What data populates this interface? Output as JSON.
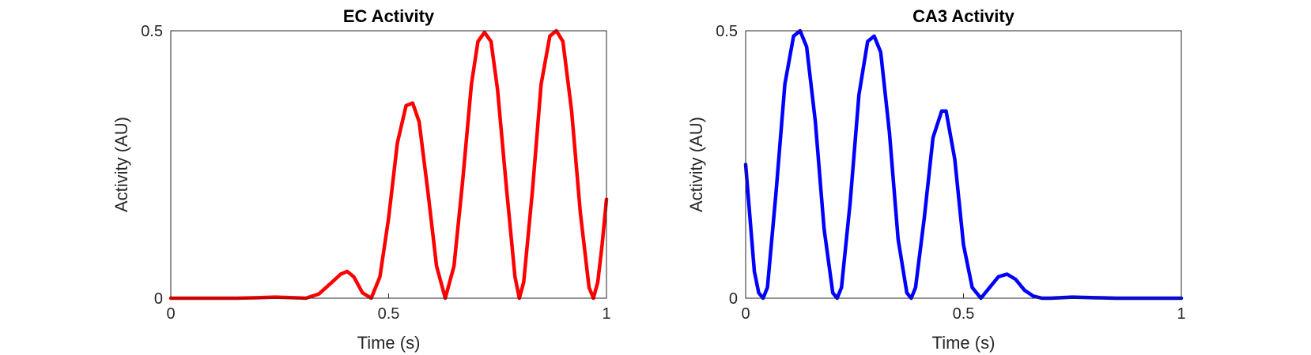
{
  "chart_data": [
    {
      "type": "line",
      "title": "EC Activity",
      "xlabel": "Time (s)",
      "ylabel": "Activity (AU)",
      "xlim": [
        0,
        1
      ],
      "ylim": [
        0,
        0.5
      ],
      "xticks": [
        0,
        0.5,
        1
      ],
      "xtick_labels": [
        "0",
        "0.5",
        "1"
      ],
      "yticks": [
        0,
        0.5
      ],
      "ytick_labels": [
        "0",
        "0.5"
      ],
      "grid": false,
      "color": "#ff0000",
      "series": [
        {
          "x": [
            0,
            0.05,
            0.1,
            0.15,
            0.2,
            0.24,
            0.28,
            0.31,
            0.34,
            0.37,
            0.39,
            0.405,
            0.42,
            0.44,
            0.46,
            0.48,
            0.5,
            0.52,
            0.54,
            0.555,
            0.57,
            0.59,
            0.61,
            0.63,
            0.65,
            0.67,
            0.69,
            0.705,
            0.72,
            0.735,
            0.75,
            0.77,
            0.79,
            0.8,
            0.81,
            0.83,
            0.85,
            0.87,
            0.885,
            0.9,
            0.92,
            0.94,
            0.96,
            0.97,
            0.98,
            0.99,
            1.0
          ],
          "y": [
            0.0,
            0.0,
            0.0,
            0.0,
            0.001,
            0.002,
            0.001,
            0.0,
            0.008,
            0.03,
            0.045,
            0.05,
            0.04,
            0.01,
            0.0,
            0.04,
            0.15,
            0.29,
            0.36,
            0.365,
            0.33,
            0.2,
            0.06,
            0.0,
            0.06,
            0.22,
            0.4,
            0.48,
            0.497,
            0.48,
            0.39,
            0.21,
            0.04,
            0.0,
            0.03,
            0.2,
            0.4,
            0.49,
            0.5,
            0.48,
            0.35,
            0.16,
            0.02,
            0.0,
            0.03,
            0.1,
            0.185
          ]
        }
      ]
    },
    {
      "type": "line",
      "title": "CA3 Activity",
      "xlabel": "Time (s)",
      "ylabel": "Activity (AU)",
      "xlim": [
        0,
        1
      ],
      "ylim": [
        0,
        0.5
      ],
      "xticks": [
        0,
        0.5,
        1
      ],
      "xtick_labels": [
        "0",
        "0.5",
        "1"
      ],
      "yticks": [
        0,
        0.5
      ],
      "ytick_labels": [
        "0",
        "0.5"
      ],
      "grid": false,
      "color": "#0000ff",
      "series": [
        {
          "x": [
            0,
            0.01,
            0.02,
            0.03,
            0.04,
            0.05,
            0.07,
            0.09,
            0.11,
            0.125,
            0.14,
            0.16,
            0.18,
            0.2,
            0.21,
            0.22,
            0.24,
            0.26,
            0.28,
            0.295,
            0.31,
            0.33,
            0.35,
            0.37,
            0.38,
            0.39,
            0.41,
            0.43,
            0.45,
            0.46,
            0.48,
            0.5,
            0.52,
            0.54,
            0.56,
            0.58,
            0.6,
            0.62,
            0.64,
            0.66,
            0.68,
            0.7,
            0.75,
            0.8,
            0.85,
            0.9,
            0.95,
            1.0
          ],
          "y": [
            0.25,
            0.15,
            0.05,
            0.01,
            0.0,
            0.02,
            0.2,
            0.4,
            0.49,
            0.5,
            0.47,
            0.33,
            0.13,
            0.01,
            0.0,
            0.02,
            0.18,
            0.38,
            0.48,
            0.49,
            0.46,
            0.31,
            0.11,
            0.01,
            0.0,
            0.02,
            0.15,
            0.3,
            0.35,
            0.35,
            0.26,
            0.1,
            0.02,
            0.0,
            0.02,
            0.04,
            0.045,
            0.035,
            0.015,
            0.004,
            0.0,
            0.0,
            0.002,
            0.001,
            0.0,
            0.0,
            0.0,
            0.0
          ]
        }
      ]
    }
  ]
}
